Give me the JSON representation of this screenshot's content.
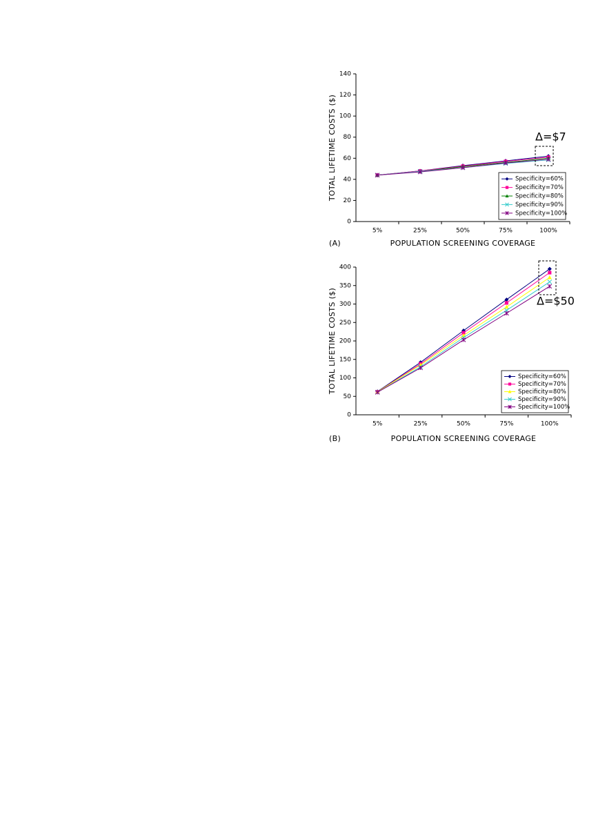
{
  "chart_data": [
    {
      "type": "line",
      "panel_label": "(A)",
      "y_label": "TOTAL LIFETIME COSTS ($)",
      "x_label": "POPULATION SCREENING COVERAGE",
      "categories": [
        "5%",
        "25%",
        "50%",
        "75%",
        "100%"
      ],
      "ylim": [
        0,
        140
      ],
      "yticks": [
        0,
        20,
        40,
        60,
        80,
        100,
        120,
        140
      ],
      "annotation": "Δ=$7",
      "legend": "lower right",
      "series": [
        {
          "name": "Specificity=60%",
          "color": "#000080",
          "marker": "diamond",
          "values": [
            44,
            48,
            53,
            57.5,
            62
          ]
        },
        {
          "name": "Specificity=70%",
          "color": "#ff0099",
          "marker": "square",
          "values": [
            44,
            48,
            52.5,
            57,
            61
          ]
        },
        {
          "name": "Specificity=80%",
          "color": "#008000",
          "marker": "triangle",
          "values": [
            44,
            47.5,
            52,
            56,
            60
          ]
        },
        {
          "name": "Specificity=90%",
          "color": "#33cccc",
          "marker": "x",
          "values": [
            44,
            47.5,
            51,
            55,
            58.5
          ]
        },
        {
          "name": "Specificity=100%",
          "color": "#800080",
          "marker": "star",
          "values": [
            44,
            47,
            51,
            55.5,
            59
          ]
        }
      ]
    },
    {
      "type": "line",
      "panel_label": "(B)",
      "y_label": "TOTAL LIFETIME COSTS ($)",
      "x_label": "POPULATION SCREENING COVERAGE",
      "categories": [
        "5%",
        "25%",
        "50%",
        "75%",
        "100%"
      ],
      "ylim": [
        0,
        400
      ],
      "yticks": [
        0,
        50,
        100,
        150,
        200,
        250,
        300,
        350,
        400
      ],
      "annotation": "Δ=$50",
      "legend": "lower right",
      "series": [
        {
          "name": "Specificity=60%",
          "color": "#000080",
          "marker": "diamond",
          "values": [
            63,
            142,
            228,
            312,
            395
          ]
        },
        {
          "name": "Specificity=70%",
          "color": "#ff0099",
          "marker": "square",
          "values": [
            62,
            138,
            222,
            303,
            385
          ]
        },
        {
          "name": "Specificity=80%",
          "color": "#ffff00",
          "marker": "triangle",
          "values": [
            62,
            135,
            215,
            292,
            372
          ]
        },
        {
          "name": "Specificity=90%",
          "color": "#33cccc",
          "marker": "x",
          "values": [
            61,
            130,
            209,
            283,
            360
          ]
        },
        {
          "name": "Specificity=100%",
          "color": "#800080",
          "marker": "star",
          "values": [
            61,
            127,
            203,
            275,
            348
          ]
        }
      ]
    }
  ]
}
